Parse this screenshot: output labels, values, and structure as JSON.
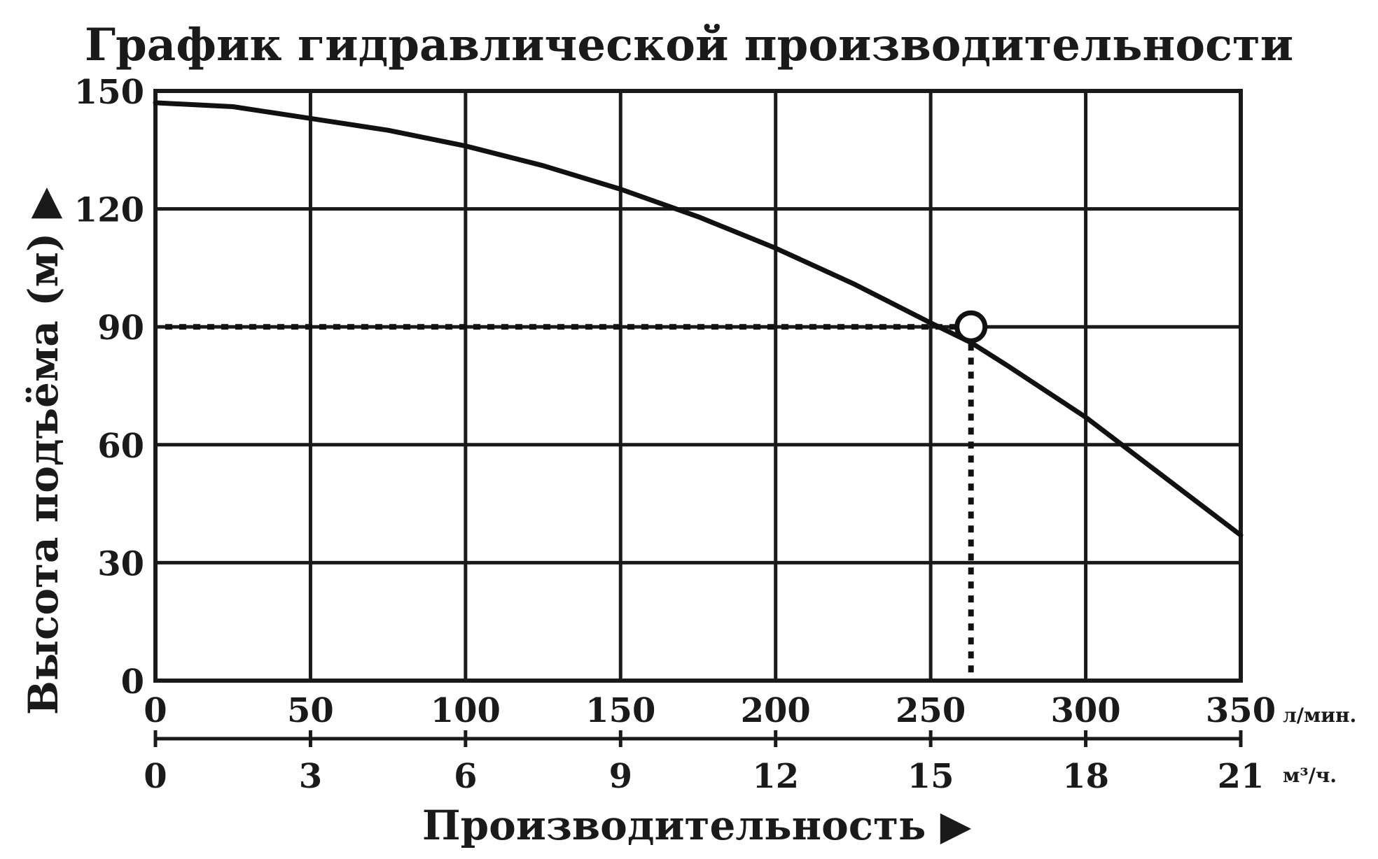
{
  "chart_data": {
    "type": "line",
    "title": "График гидравлической производительности",
    "ylabel": "Высота подъёма (м) ▶",
    "xlabel": "Производительность ▶",
    "x_primary": {
      "unit": "л/мин.",
      "ticks": [
        "0",
        "50",
        "100",
        "150",
        "200",
        "250",
        "300",
        "350"
      ],
      "range": [
        0,
        350
      ]
    },
    "x_secondary": {
      "unit": "м³/ч.",
      "ticks": [
        "0",
        "3",
        "6",
        "9",
        "12",
        "15",
        "18",
        "21"
      ],
      "range": [
        0,
        21
      ]
    },
    "y_axis": {
      "ticks": [
        "0",
        "30",
        "60",
        "90",
        "120",
        "150"
      ],
      "range": [
        0,
        150
      ]
    },
    "grid": true,
    "series": [
      {
        "x": [
          0,
          25,
          50,
          75,
          100,
          125,
          150,
          175,
          200,
          225,
          250,
          263,
          275,
          300,
          325,
          350
        ],
        "y": [
          147,
          146,
          143,
          140,
          136,
          131,
          125,
          118,
          110,
          101,
          91,
          86,
          80,
          67,
          52,
          37
        ]
      }
    ],
    "annotation": {
      "x": 263,
      "y": 90,
      "style": "dotted guide lines with open circle marker"
    },
    "colors": {
      "line": "#111111",
      "grid": "#1a1a1a",
      "background": "#ffffff"
    }
  }
}
